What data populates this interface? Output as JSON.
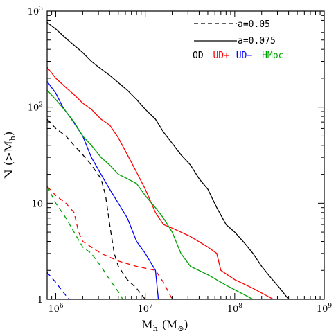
{
  "chart_data": {
    "type": "line",
    "title": "",
    "xlabel": "M",
    "xlabel_sub": "h",
    "xlabel_unit": "(M",
    "xlabel_unit_sub": "⊙",
    "xlabel_unit_close": ")",
    "ylabel": "N (>M",
    "ylabel_sub": "h",
    "ylabel_close": ")",
    "x_scale": "log",
    "y_scale": "log",
    "xlim": [
      800000,
      1000000000
    ],
    "ylim": [
      1,
      1000
    ],
    "x_ticks": [
      {
        "value": 1000000,
        "mantissa": "10",
        "exp": "6"
      },
      {
        "value": 10000000,
        "mantissa": "10",
        "exp": "7"
      },
      {
        "value": 100000000,
        "mantissa": "10",
        "exp": "8"
      },
      {
        "value": 1000000000,
        "mantissa": "10",
        "exp": "9"
      }
    ],
    "y_ticks": [
      {
        "value": 1,
        "mantissa": "1",
        "exp": ""
      },
      {
        "value": 10,
        "mantissa": "10",
        "exp": ""
      },
      {
        "value": 100,
        "mantissa": "10",
        "exp": "2"
      },
      {
        "value": 1000,
        "mantissa": "10",
        "exp": "3"
      }
    ],
    "grid": false,
    "legend_position": "top-right",
    "legend": {
      "styles": [
        {
          "label": "a=0.05",
          "dash": "dashed"
        },
        {
          "label": "a=0.075",
          "dash": "solid"
        }
      ],
      "colors": [
        {
          "label": "OD",
          "color": "#000000"
        },
        {
          "label": "UD+",
          "color": "#ff0000"
        },
        {
          "label": "UD−",
          "color": "#0000ff"
        },
        {
          "label": "HMpc",
          "color": "#00a000"
        }
      ]
    },
    "series": [
      {
        "color": "#000000",
        "dash": "solid",
        "points": [
          [
            800000,
            760
          ],
          [
            1000000,
            650
          ],
          [
            1300000,
            520
          ],
          [
            1600000,
            440
          ],
          [
            2000000,
            370
          ],
          [
            2500000,
            300
          ],
          [
            3200000,
            250
          ],
          [
            4000000,
            215
          ],
          [
            5000000,
            180
          ],
          [
            6300000,
            150
          ],
          [
            8000000,
            120
          ],
          [
            10000000,
            95
          ],
          [
            13000000,
            75
          ],
          [
            16000000,
            55
          ],
          [
            20000000,
            42
          ],
          [
            25000000,
            32
          ],
          [
            32000000,
            25
          ],
          [
            40000000,
            18
          ],
          [
            50000000,
            14
          ],
          [
            63000000,
            9
          ],
          [
            80000000,
            6
          ],
          [
            100000000,
            5
          ],
          [
            130000000,
            3.8
          ],
          [
            160000000,
            3
          ],
          [
            200000000,
            2.2
          ],
          [
            250000000,
            1.7
          ],
          [
            320000000,
            1.3
          ],
          [
            400000000,
            1
          ]
        ]
      },
      {
        "color": "#ff0000",
        "dash": "solid",
        "points": [
          [
            800000,
            260
          ],
          [
            1000000,
            200
          ],
          [
            1300000,
            160
          ],
          [
            1600000,
            135
          ],
          [
            2000000,
            110
          ],
          [
            2500000,
            95
          ],
          [
            3200000,
            75
          ],
          [
            4000000,
            65
          ],
          [
            5000000,
            48
          ],
          [
            6300000,
            32
          ],
          [
            8000000,
            21
          ],
          [
            10000000,
            14
          ],
          [
            13000000,
            8
          ],
          [
            16000000,
            6
          ],
          [
            20000000,
            5.5
          ],
          [
            32000000,
            4.5
          ],
          [
            50000000,
            3.5
          ],
          [
            63000000,
            3
          ],
          [
            70000000,
            2
          ],
          [
            100000000,
            1.6
          ],
          [
            160000000,
            1.3
          ],
          [
            270000000,
            1
          ]
        ]
      },
      {
        "color": "#0000ff",
        "dash": "solid",
        "points": [
          [
            800000,
            185
          ],
          [
            1000000,
            140
          ],
          [
            1200000,
            100
          ],
          [
            1500000,
            75
          ],
          [
            2000000,
            50
          ],
          [
            2500000,
            30
          ],
          [
            3200000,
            20
          ],
          [
            4000000,
            14
          ],
          [
            5000000,
            10
          ],
          [
            6300000,
            7
          ],
          [
            8000000,
            4
          ],
          [
            10000000,
            3
          ],
          [
            13000000,
            2
          ],
          [
            14000000,
            1
          ]
        ]
      },
      {
        "color": "#00a000",
        "dash": "solid",
        "points": [
          [
            800000,
            150
          ],
          [
            1000000,
            120
          ],
          [
            1300000,
            90
          ],
          [
            1600000,
            70
          ],
          [
            2000000,
            50
          ],
          [
            2500000,
            40
          ],
          [
            3200000,
            30
          ],
          [
            4000000,
            25
          ],
          [
            5000000,
            20
          ],
          [
            6300000,
            18
          ],
          [
            8000000,
            16
          ],
          [
            10000000,
            12
          ],
          [
            13000000,
            9
          ],
          [
            16000000,
            7
          ],
          [
            20000000,
            5
          ],
          [
            25000000,
            3
          ],
          [
            32000000,
            2.2
          ],
          [
            50000000,
            1.8
          ],
          [
            80000000,
            1.4
          ],
          [
            160000000,
            1
          ]
        ]
      },
      {
        "color": "#000000",
        "dash": "dashed",
        "points": [
          [
            800000,
            75
          ],
          [
            1000000,
            60
          ],
          [
            1300000,
            50
          ],
          [
            1600000,
            40
          ],
          [
            2000000,
            32
          ],
          [
            2500000,
            25
          ],
          [
            3200000,
            18
          ],
          [
            3600000,
            12
          ],
          [
            4000000,
            6
          ],
          [
            4500000,
            3
          ],
          [
            5000000,
            2.2
          ],
          [
            6300000,
            1.6
          ],
          [
            8000000,
            1.3
          ],
          [
            10000000,
            1
          ]
        ]
      },
      {
        "color": "#ff0000",
        "dash": "dashed",
        "points": [
          [
            800000,
            15
          ],
          [
            1000000,
            12
          ],
          [
            1300000,
            10
          ],
          [
            1600000,
            8
          ],
          [
            1800000,
            5
          ],
          [
            2000000,
            4
          ],
          [
            3200000,
            3
          ],
          [
            5000000,
            2.5
          ],
          [
            8000000,
            2.2
          ],
          [
            13000000,
            2
          ],
          [
            16000000,
            1.5
          ],
          [
            20000000,
            1
          ]
        ]
      },
      {
        "color": "#00a000",
        "dash": "dashed",
        "points": [
          [
            800000,
            15
          ],
          [
            1000000,
            10
          ],
          [
            1300000,
            7
          ],
          [
            1600000,
            5
          ],
          [
            2000000,
            3.5
          ],
          [
            2500000,
            3
          ],
          [
            3200000,
            2.2
          ],
          [
            4000000,
            1.6
          ],
          [
            5000000,
            1.2
          ],
          [
            5600000,
            1
          ]
        ]
      },
      {
        "color": "#0000ff",
        "dash": "dashed",
        "points": [
          [
            800000,
            1.9
          ],
          [
            1000000,
            1.5
          ],
          [
            1200000,
            1.2
          ],
          [
            1400000,
            1
          ]
        ]
      }
    ]
  }
}
